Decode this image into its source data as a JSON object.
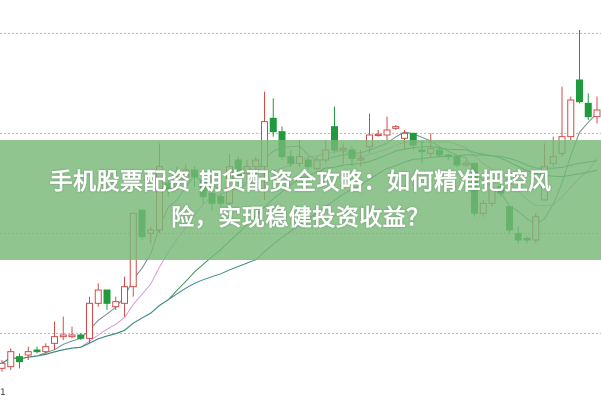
{
  "banner": {
    "line1": "手机股票配资 期货配资全攻略：如何精准把控风",
    "line2": "险，实现稳健投资收益？"
  },
  "chart_data": {
    "type": "candlestick",
    "title": "",
    "grid": true,
    "grid_levels": [
      10,
      13,
      16,
      19
    ],
    "ylim": [
      8,
      20
    ],
    "corner_tick_label": "1",
    "colors": {
      "up": "#d14b4b",
      "down": "#1f9a3c",
      "grid": "#b5b5b5"
    },
    "moving_averages": [
      {
        "period": 5,
        "color": "#6f8f8f"
      },
      {
        "period": 10,
        "color": "#d99ad9"
      },
      {
        "period": 20,
        "color": "#3d8f5a"
      },
      {
        "period": 30,
        "color": "#3f8c8c"
      }
    ],
    "candles": [
      [
        8.95,
        9.1,
        9.2,
        8.85
      ],
      [
        9.0,
        9.45,
        9.55,
        8.9
      ],
      [
        9.3,
        9.15,
        9.4,
        8.95
      ],
      [
        9.35,
        9.45,
        9.6,
        9.2
      ],
      [
        9.5,
        9.45,
        9.6,
        9.4
      ],
      [
        9.45,
        9.6,
        9.7,
        9.35
      ],
      [
        9.7,
        9.9,
        10.35,
        9.5
      ],
      [
        9.9,
        9.95,
        10.5,
        9.8
      ],
      [
        9.9,
        9.95,
        10.2,
        9.85
      ],
      [
        9.95,
        9.85,
        10.0,
        9.8
      ],
      [
        9.85,
        10.9,
        11.1,
        9.7
      ],
      [
        10.9,
        11.3,
        11.5,
        10.8
      ],
      [
        11.3,
        10.9,
        11.3,
        10.7
      ],
      [
        10.8,
        10.95,
        11.1,
        10.7
      ],
      [
        10.9,
        11.4,
        11.7,
        10.5
      ],
      [
        11.4,
        13.6,
        13.6,
        11.1
      ],
      [
        13.7,
        12.9,
        13.7,
        12.8
      ],
      [
        13.0,
        13.1,
        13.2,
        12.7
      ],
      [
        13.1,
        15.0,
        15.7,
        13.0
      ],
      [
        14.5,
        14.3,
        14.6,
        14.1
      ],
      [
        14.4,
        14.7,
        15.0,
        14.3
      ],
      [
        14.6,
        14.9,
        15.1,
        14.5
      ],
      [
        14.9,
        14.7,
        15.0,
        14.4
      ],
      [
        14.6,
        14.1,
        14.9,
        13.9
      ],
      [
        14.2,
        13.9,
        14.3,
        13.7
      ],
      [
        14.1,
        13.9,
        14.2,
        13.8
      ],
      [
        13.9,
        15.0,
        15.4,
        13.8
      ],
      [
        15.2,
        14.7,
        15.3,
        14.6
      ],
      [
        14.8,
        15.0,
        15.2,
        14.6
      ],
      [
        15.0,
        15.2,
        15.3,
        14.9
      ],
      [
        15.0,
        16.35,
        17.25,
        14.0
      ],
      [
        16.45,
        16.05,
        17.05,
        15.9
      ],
      [
        16.05,
        15.3,
        16.2,
        15.2
      ],
      [
        15.3,
        15.1,
        15.5,
        15.0
      ],
      [
        15.1,
        15.3,
        15.8,
        15.0
      ],
      [
        15.2,
        15.0,
        15.3,
        14.9
      ],
      [
        14.95,
        15.2,
        15.3,
        14.9
      ],
      [
        15.2,
        15.5,
        15.8,
        15.1
      ],
      [
        16.2,
        15.5,
        16.8,
        15.4
      ],
      [
        15.5,
        15.55,
        15.7,
        15.1
      ],
      [
        15.5,
        15.25,
        15.6,
        15.0
      ],
      [
        15.2,
        15.25,
        15.5,
        15.0
      ],
      [
        15.6,
        15.95,
        16.6,
        15.4
      ],
      [
        15.95,
        15.97,
        16.1,
        15.9
      ],
      [
        15.95,
        16.1,
        16.5,
        15.8
      ],
      [
        16.15,
        16.2,
        16.25,
        16.1
      ],
      [
        15.85,
        16.0,
        16.1,
        15.5
      ],
      [
        16.0,
        15.65,
        16.0,
        15.5
      ],
      [
        15.5,
        15.45,
        15.8,
        15.1
      ],
      [
        15.4,
        15.55,
        16.0,
        15.3
      ],
      [
        15.5,
        15.35,
        15.6,
        15.3
      ],
      [
        15.35,
        15.3,
        15.4,
        15.2
      ],
      [
        15.3,
        15.05,
        15.3,
        15.0
      ],
      [
        15.05,
        15.1,
        15.2,
        15.0
      ],
      [
        15.1,
        13.6,
        15.1,
        13.5
      ],
      [
        13.6,
        13.9,
        14.0,
        13.5
      ],
      [
        13.9,
        14.3,
        14.5,
        13.8
      ],
      [
        14.4,
        14.2,
        14.5,
        14.1
      ],
      [
        13.8,
        13.1,
        13.8,
        13.0
      ],
      [
        13.0,
        12.8,
        13.2,
        12.7
      ],
      [
        12.85,
        12.8,
        12.9,
        12.7
      ],
      [
        12.8,
        13.5,
        13.6,
        12.7
      ],
      [
        14.0,
        15.0,
        15.7,
        14.0
      ],
      [
        15.1,
        15.3,
        15.9,
        15.0
      ],
      [
        15.4,
        15.9,
        17.4,
        15.3
      ],
      [
        15.9,
        17.0,
        17.1,
        15.8
      ],
      [
        17.6,
        16.95,
        19.1,
        16.9
      ],
      [
        16.9,
        16.5,
        17.2,
        16.4
      ],
      [
        16.5,
        16.7,
        17.1,
        16.3
      ]
    ]
  }
}
